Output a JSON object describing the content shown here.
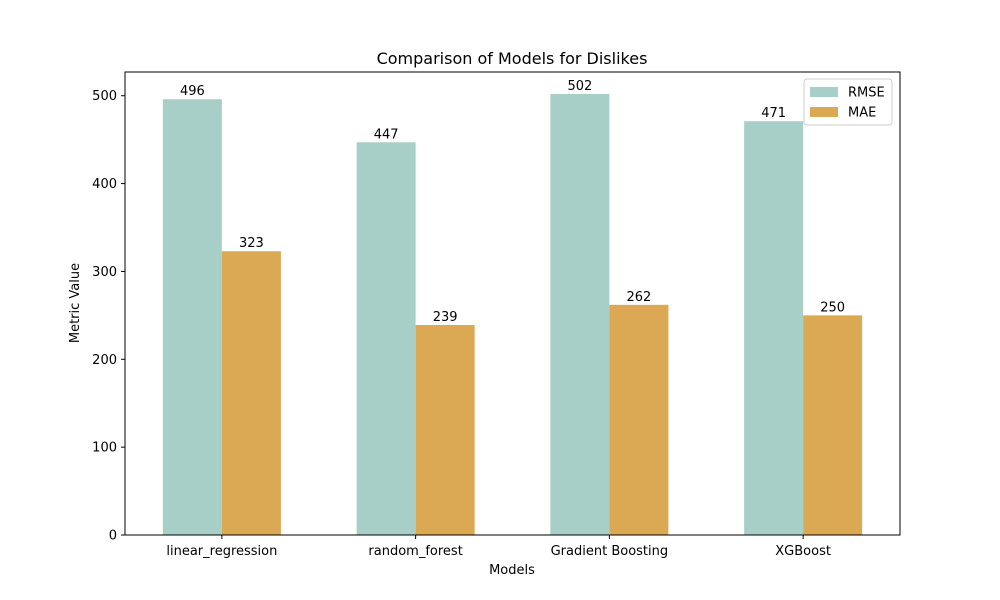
{
  "chart_data": {
    "type": "bar",
    "title": "Comparison of Models for Dislikes",
    "xlabel": "Models",
    "ylabel": "Metric Value",
    "categories": [
      "linear_regression",
      "random_forest",
      "Gradient Boosting",
      "XGBoost"
    ],
    "series": [
      {
        "name": "RMSE",
        "values": [
          496,
          447,
          502,
          471
        ],
        "color": "#a8cfc7"
      },
      {
        "name": "MAE",
        "values": [
          323,
          239,
          262,
          250
        ],
        "color": "#dba853"
      }
    ],
    "ylim": [
      0,
      527
    ],
    "yticks": [
      0,
      100,
      200,
      300,
      400,
      500
    ],
    "grid": false,
    "legend_position": "top-right"
  }
}
